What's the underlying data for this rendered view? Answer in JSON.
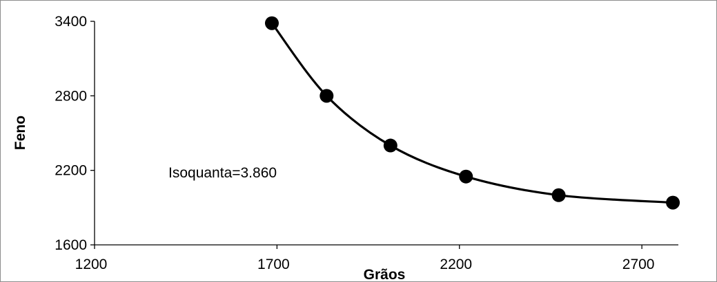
{
  "chart_data": {
    "type": "line",
    "title": "",
    "xlabel": "Grãos",
    "ylabel": "Feno",
    "xlim": [
      1200,
      2800
    ],
    "ylim": [
      1600,
      3400
    ],
    "x_ticks": [
      1200,
      1700,
      2200,
      2700
    ],
    "y_ticks": [
      1600,
      2200,
      2800,
      3400
    ],
    "grid": false,
    "legend": "none",
    "series": [
      {
        "x": [
          1686,
          1836,
          2011,
          2218,
          2472,
          2785
        ],
        "y": [
          3385,
          2800,
          2400,
          2150,
          2000,
          1940
        ],
        "color": "#000000",
        "marker": "circle",
        "smooth": true
      }
    ],
    "annotations": [
      {
        "text": "Isoquanta=3.860"
      }
    ]
  }
}
